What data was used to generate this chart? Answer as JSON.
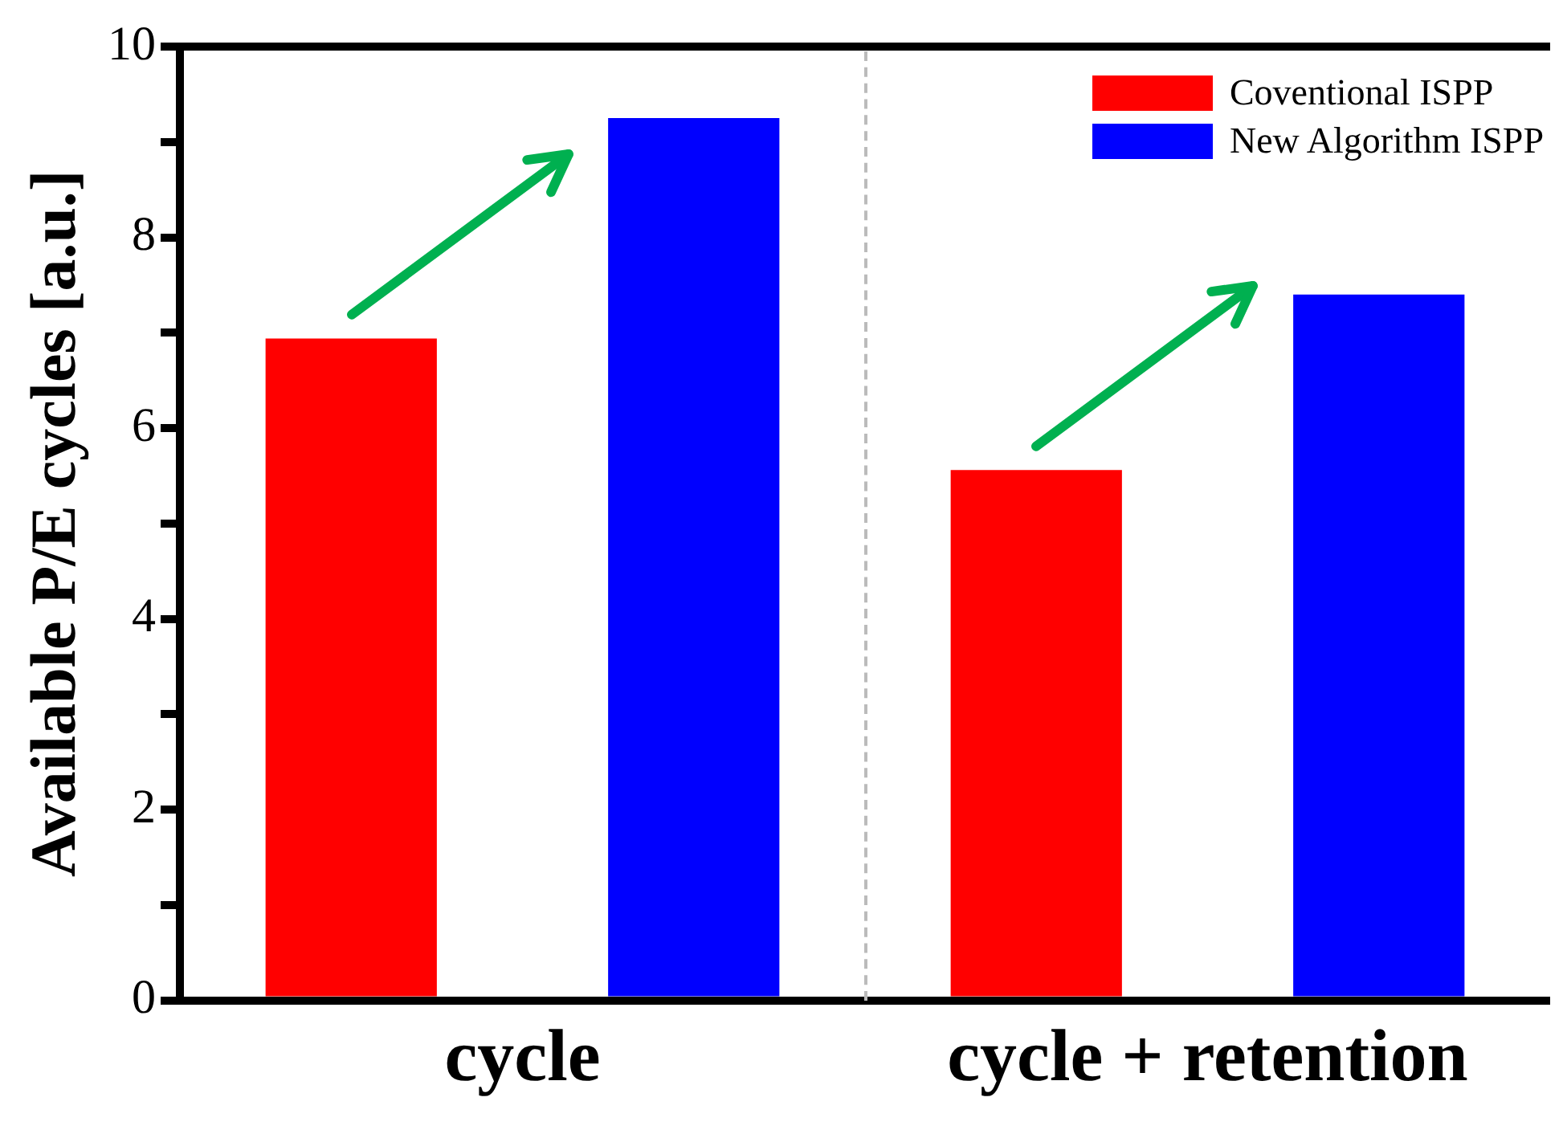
{
  "chart_data": {
    "type": "bar",
    "ylabel": "Available P/E cycles [a.u.]",
    "categories": [
      "cycle",
      "cycle + retention"
    ],
    "series": [
      {
        "name": "Coventional ISPP",
        "color": "#ff0000",
        "values": [
          6.94,
          5.56
        ]
      },
      {
        "name": "New Algorithm ISPP",
        "color": "#0000ff",
        "values": [
          9.25,
          7.4
        ]
      }
    ],
    "ylim": [
      0,
      10
    ],
    "yticks": [
      0,
      {
        "value": 1,
        "label": null
      },
      2,
      {
        "value": 3,
        "label": null
      },
      4,
      {
        "value": 5,
        "label": null
      },
      6,
      {
        "value": 7,
        "label": null
      },
      8,
      {
        "value": 9,
        "label": null
      },
      10
    ],
    "grid": false,
    "legend": "top right"
  }
}
